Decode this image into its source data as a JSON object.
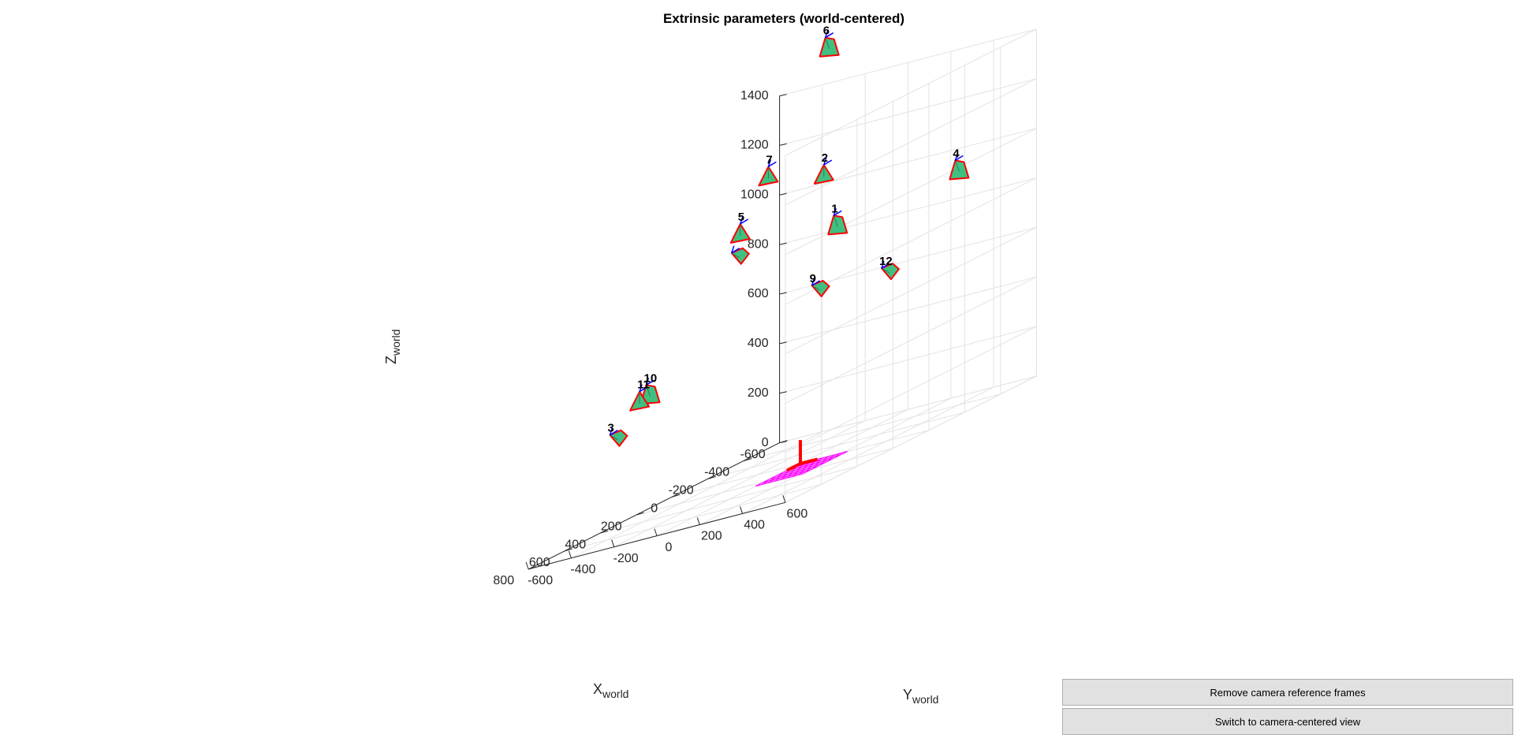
{
  "window": {
    "background": "#ffffff"
  },
  "chart_data": {
    "type": "scatter",
    "title": "Extrinsic parameters (world-centered)",
    "xlabel": "X",
    "xlabel_sub": "world",
    "ylabel": "Y",
    "ylabel_sub": "world",
    "zlabel": "Z",
    "zlabel_sub": "world",
    "xlim": [
      -600,
      800
    ],
    "ylim": [
      -600,
      600
    ],
    "zlim": [
      0,
      1400
    ],
    "x_ticks": [
      "-600",
      "-400",
      "-200",
      "0",
      "200",
      "400",
      "600",
      "800"
    ],
    "y_ticks": [
      "-600",
      "-400",
      "-200",
      "0",
      "200",
      "400",
      "600"
    ],
    "z_ticks": [
      "0",
      "200",
      "400",
      "600",
      "800",
      "1000",
      "1200",
      "1400"
    ],
    "grid": true,
    "colors": {
      "camera_face": "#40c080",
      "camera_edge": "#ff0000",
      "camera_axis": "#0000ff",
      "pattern": "#ff00ff",
      "world_axis": "#ff0000",
      "grid": "#e3e3e3",
      "axis": "#262626"
    },
    "cameras": [
      {
        "label": "1",
        "x": 150,
        "y": 300,
        "z": 950
      },
      {
        "label": "2",
        "x": 60,
        "y": 160,
        "z": 1150
      },
      {
        "label": "3",
        "x": 600,
        "y": -350,
        "z": 400
      },
      {
        "label": "4",
        "x": -50,
        "y": 700,
        "z": 1010
      },
      {
        "label": "5",
        "x": 120,
        "y": -180,
        "z": 1010
      },
      {
        "label": "",
        "x": 220,
        "y": -100,
        "z": 940
      },
      {
        "label": "6",
        "x": -400,
        "y": -200,
        "z": 1580
      },
      {
        "label": "7",
        "x": -60,
        "y": -200,
        "z": 1180
      },
      {
        "label": "9",
        "x": 250,
        "y": 300,
        "z": 730
      },
      {
        "label": "10",
        "x": 360,
        "y": -400,
        "z": 500
      },
      {
        "label": "11",
        "x": 240,
        "y": -550,
        "z": 460
      },
      {
        "label": "12",
        "x": 100,
        "y": 500,
        "z": 700
      }
    ],
    "calibration_pattern": {
      "x_range": [
        0,
        250
      ],
      "y_range": [
        0,
        220
      ],
      "cols": 8,
      "rows": 6
    }
  },
  "buttons": {
    "remove_frames": "Remove camera reference frames",
    "switch_view": "Switch to camera-centered view"
  }
}
